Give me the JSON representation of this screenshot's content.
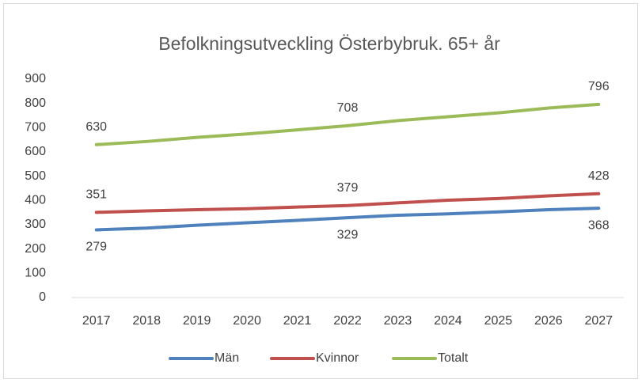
{
  "chart_data": {
    "type": "line",
    "title": "Befolkningsutveckling Österbybruk. 65+ år",
    "categories": [
      "2017",
      "2018",
      "2019",
      "2020",
      "2021",
      "2022",
      "2023",
      "2024",
      "2025",
      "2026",
      "2027"
    ],
    "series": [
      {
        "name": "Män",
        "color": "#4f81bd",
        "label_position": "below",
        "values": [
          279,
          286,
          298,
          308,
          318,
          329,
          339,
          345,
          353,
          362,
          368
        ]
      },
      {
        "name": "Kvinnor",
        "color": "#c0504d",
        "label_position": "above",
        "values": [
          351,
          357,
          362,
          366,
          373,
          379,
          390,
          401,
          408,
          419,
          428
        ]
      },
      {
        "name": "Totalt",
        "color": "#9bbb59",
        "label_position": "above",
        "values": [
          630,
          643,
          660,
          674,
          691,
          708,
          729,
          745,
          761,
          781,
          796
        ]
      }
    ],
    "labeled_points": [
      0,
      5,
      10
    ],
    "ylim": [
      0,
      900
    ],
    "yticks": [
      0,
      100,
      200,
      300,
      400,
      500,
      600,
      700,
      800,
      900
    ],
    "grid": false,
    "legend": "bottom"
  }
}
